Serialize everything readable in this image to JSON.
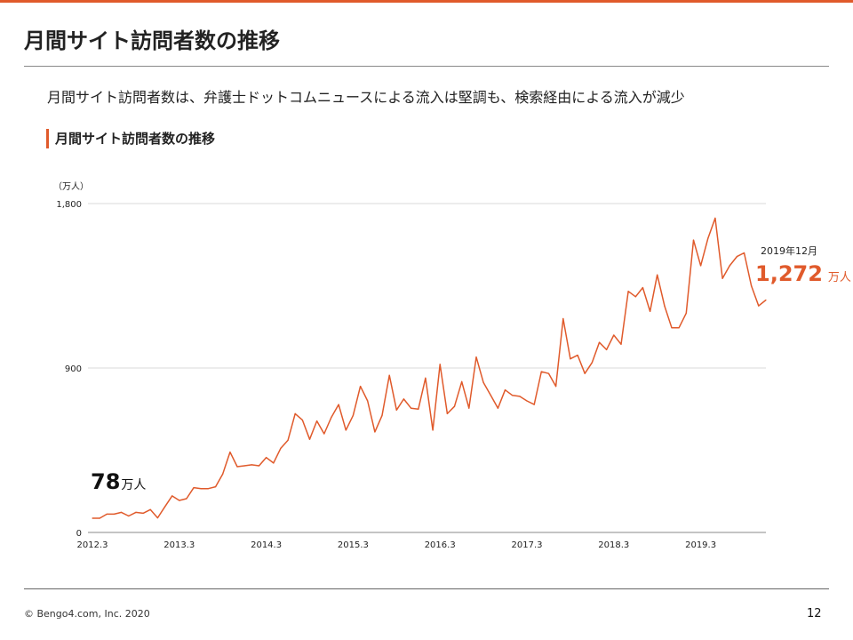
{
  "slide": {
    "title": "月間サイト訪問者数の推移",
    "subtitle": "月間サイト訪問者数は、弁護士ドットコムニュースによる流入は堅調も、検索経由による流入が減少",
    "section_heading": "月間サイト訪問者数の推移",
    "accent_color": "#e05a2b"
  },
  "callouts": {
    "start_value": "78",
    "start_unit": "万人",
    "end_date": "2019年12月",
    "end_value": "1,272",
    "end_unit": "万人"
  },
  "footer": {
    "copyright": "© Bengo4.com, Inc. 2020",
    "page_number": "12"
  },
  "chart_data": {
    "type": "line",
    "unit_label": "（万人）",
    "ylim": [
      0,
      1800
    ],
    "y_ticks": [
      0,
      900,
      1800
    ],
    "y_tick_labels": [
      "0",
      "900",
      "1,800"
    ],
    "x_tick_labels": [
      "2012.3",
      "2013.3",
      "2014.3",
      "2015.3",
      "2016.3",
      "2017.3",
      "2018.3",
      "2019.3"
    ],
    "x_start": "2012.3",
    "x_end": "2019.12",
    "grid": true,
    "line_color": "#e05a2b",
    "series": [
      {
        "values": [
          78,
          78,
          100,
          100,
          110,
          90,
          110,
          105,
          125,
          80,
          140,
          200,
          175,
          185,
          245,
          240,
          240,
          250,
          320,
          440,
          360,
          365,
          370,
          365,
          410,
          380,
          460,
          505,
          650,
          615,
          510,
          610,
          540,
          630,
          700,
          560,
          640,
          800,
          720,
          550,
          640,
          860,
          670,
          730,
          680,
          675,
          845,
          560,
          920,
          650,
          690,
          825,
          680,
          960,
          820,
          750,
          680,
          780,
          750,
          745,
          720,
          700,
          880,
          870,
          800,
          1170,
          950,
          970,
          870,
          930,
          1040,
          1000,
          1080,
          1030,
          1320,
          1290,
          1340,
          1210,
          1410,
          1240,
          1120,
          1120,
          1200,
          1600,
          1460,
          1610,
          1720,
          1390,
          1460,
          1510,
          1530,
          1350,
          1240,
          1272
        ]
      }
    ]
  }
}
